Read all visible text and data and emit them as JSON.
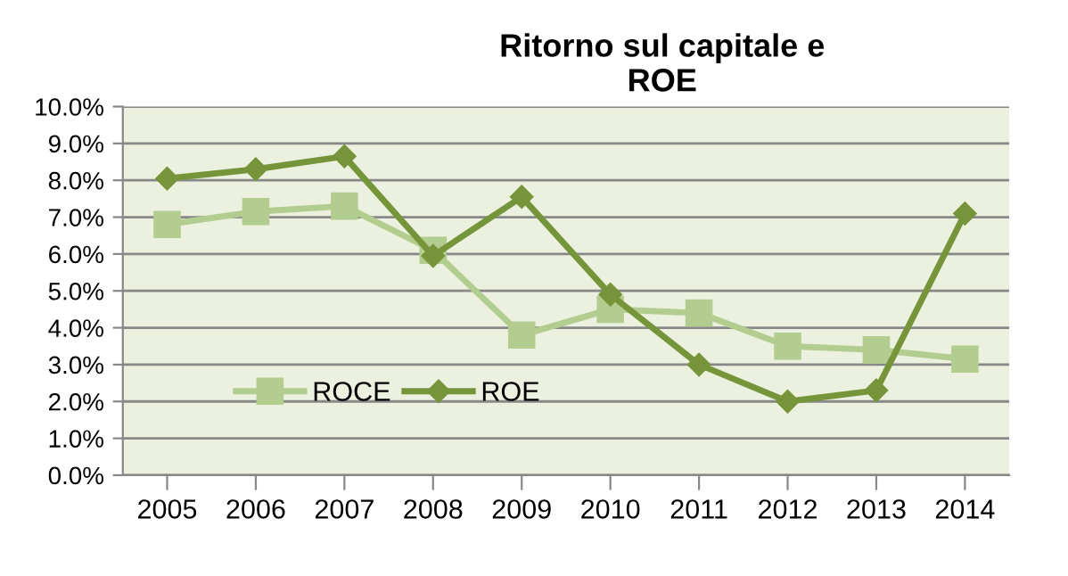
{
  "chart_data": {
    "type": "line",
    "title": "Ritorno sul capitale e\nROE",
    "categories": [
      "2005",
      "2006",
      "2007",
      "2008",
      "2009",
      "2010",
      "2011",
      "2012",
      "2013",
      "2014"
    ],
    "series": [
      {
        "name": "ROCE",
        "color": "#b3cc8f",
        "marker": "square",
        "values": [
          6.8,
          7.15,
          7.3,
          6.1,
          3.8,
          4.5,
          4.4,
          3.5,
          3.4,
          3.15
        ]
      },
      {
        "name": "ROE",
        "color": "#76953a",
        "marker": "diamond",
        "values": [
          8.05,
          8.3,
          8.65,
          5.95,
          7.55,
          4.9,
          3.0,
          2.0,
          2.3,
          7.1
        ]
      }
    ],
    "ylim": [
      0,
      10
    ],
    "yticks": [
      {
        "value": 0,
        "label": "0.0%"
      },
      {
        "value": 1,
        "label": "1.0%"
      },
      {
        "value": 2,
        "label": "2.0%"
      },
      {
        "value": 3,
        "label": "3.0%"
      },
      {
        "value": 4,
        "label": "4.0%"
      },
      {
        "value": 5,
        "label": "5.0%"
      },
      {
        "value": 6,
        "label": "6.0%"
      },
      {
        "value": 7,
        "label": "7.0%"
      },
      {
        "value": 8,
        "label": "8.0%"
      },
      {
        "value": 9,
        "label": "9.0%"
      },
      {
        "value": 10,
        "label": "10.0%"
      }
    ],
    "grid": "y",
    "legend": "bottom left",
    "line_style": "solid"
  }
}
